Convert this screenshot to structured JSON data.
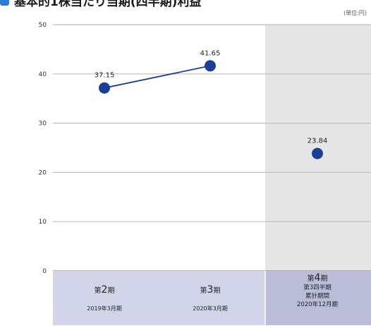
{
  "chart_data": {
    "type": "line",
    "title": "基本的1株当たり当期(四半期)利益",
    "unit_note": "(単位:円)",
    "ylim": [
      0,
      50
    ],
    "yticks": [
      0,
      10,
      20,
      30,
      40,
      50
    ],
    "grid": true,
    "colors": {
      "series": "#1b3f94",
      "icon": "#2b7fd0",
      "shade": "#e6e6e6",
      "category_band": "#d2d4ea",
      "category_band_dark": "#babcd8",
      "grid": "#bdbdbd"
    },
    "categories": [
      {
        "period": "第2期",
        "period_prefix": "第",
        "period_num": "2",
        "period_suffix": "期",
        "sub": [
          "2019年3月期"
        ]
      },
      {
        "period": "第3期",
        "period_prefix": "第",
        "period_num": "3",
        "period_suffix": "期",
        "sub": [
          "2020年3月期"
        ]
      },
      {
        "period": "第4期",
        "period_prefix": "第",
        "period_num": "4",
        "period_suffix": "期",
        "sub": [
          "第3四半期",
          "累計期間",
          "2020年12月期"
        ]
      }
    ],
    "series": [
      {
        "values": [
          37.15,
          41.65,
          23.84
        ],
        "labels": [
          "37.15",
          "41.65",
          "23.84"
        ],
        "connected": [
          true,
          true,
          false
        ]
      }
    ]
  }
}
